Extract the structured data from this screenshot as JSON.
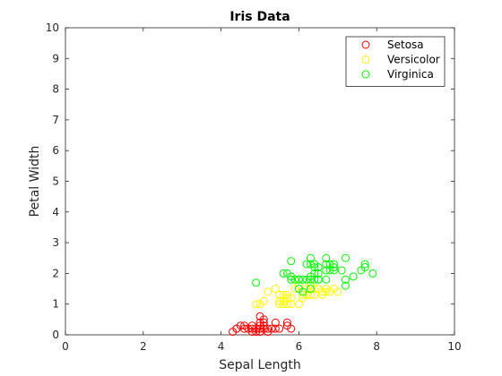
{
  "chart_data": {
    "type": "scatter",
    "title": "Iris Data",
    "xlabel": "Sepal Length",
    "ylabel": "Petal Width",
    "xlim": [
      0,
      10
    ],
    "ylim": [
      0,
      10
    ],
    "xticks": [
      "0",
      "2",
      "4",
      "6",
      "8",
      "10"
    ],
    "yticks": [
      "0",
      "1",
      "2",
      "3",
      "4",
      "5",
      "6",
      "7",
      "8",
      "9",
      "10"
    ],
    "grid": false,
    "legend_position": "top-right",
    "marker": "open-circle",
    "series": [
      {
        "name": "Setosa",
        "color": "#ff0000",
        "points": [
          [
            4.3,
            0.1
          ],
          [
            4.4,
            0.2
          ],
          [
            4.5,
            0.3
          ],
          [
            4.6,
            0.2
          ],
          [
            4.6,
            0.3
          ],
          [
            4.7,
            0.2
          ],
          [
            4.8,
            0.2
          ],
          [
            4.8,
            0.1
          ],
          [
            4.8,
            0.3
          ],
          [
            4.9,
            0.1
          ],
          [
            4.9,
            0.2
          ],
          [
            5.0,
            0.2
          ],
          [
            5.0,
            0.4
          ],
          [
            5.0,
            0.6
          ],
          [
            5.0,
            0.3
          ],
          [
            5.1,
            0.2
          ],
          [
            5.1,
            0.4
          ],
          [
            5.1,
            0.5
          ],
          [
            5.1,
            0.3
          ],
          [
            5.2,
            0.2
          ],
          [
            5.2,
            0.1
          ],
          [
            5.3,
            0.2
          ],
          [
            5.4,
            0.2
          ],
          [
            5.4,
            0.4
          ],
          [
            5.5,
            0.2
          ],
          [
            5.7,
            0.3
          ],
          [
            5.7,
            0.4
          ],
          [
            5.8,
            0.2
          ],
          [
            4.4,
            0.2
          ],
          [
            5.0,
            0.1
          ]
        ]
      },
      {
        "name": "Versicolor",
        "color": "#ffff00",
        "points": [
          [
            4.9,
            1.0
          ],
          [
            5.0,
            1.0
          ],
          [
            5.1,
            1.1
          ],
          [
            5.2,
            1.4
          ],
          [
            5.5,
            1.0
          ],
          [
            5.5,
            1.1
          ],
          [
            5.5,
            1.3
          ],
          [
            5.6,
            1.0
          ],
          [
            5.6,
            1.1
          ],
          [
            5.6,
            1.3
          ],
          [
            5.7,
            1.0
          ],
          [
            5.7,
            1.2
          ],
          [
            5.7,
            1.3
          ],
          [
            5.8,
            1.0
          ],
          [
            5.8,
            1.2
          ],
          [
            5.9,
            1.5
          ],
          [
            6.0,
            1.0
          ],
          [
            6.0,
            1.6
          ],
          [
            6.1,
            1.2
          ],
          [
            6.1,
            1.4
          ],
          [
            6.2,
            1.3
          ],
          [
            6.2,
            1.5
          ],
          [
            6.3,
            1.3
          ],
          [
            6.3,
            1.5
          ],
          [
            6.4,
            1.3
          ],
          [
            6.4,
            1.5
          ],
          [
            6.5,
            1.5
          ],
          [
            6.6,
            1.3
          ],
          [
            6.6,
            1.4
          ],
          [
            6.7,
            1.4
          ],
          [
            6.7,
            1.5
          ],
          [
            6.8,
            1.4
          ],
          [
            6.9,
            1.5
          ],
          [
            7.0,
            1.4
          ],
          [
            5.4,
            1.5
          ],
          [
            5.9,
            1.8
          ],
          [
            6.1,
            1.3
          ],
          [
            6.3,
            1.6
          ]
        ]
      },
      {
        "name": "Virginica",
        "color": "#00ff00",
        "points": [
          [
            4.9,
            1.7
          ],
          [
            5.6,
            2.0
          ],
          [
            5.7,
            2.0
          ],
          [
            5.8,
            1.9
          ],
          [
            5.8,
            2.4
          ],
          [
            5.9,
            1.8
          ],
          [
            6.0,
            1.8
          ],
          [
            6.0,
            1.5
          ],
          [
            6.1,
            1.4
          ],
          [
            6.1,
            1.8
          ],
          [
            6.2,
            1.8
          ],
          [
            6.3,
            1.8
          ],
          [
            6.3,
            2.3
          ],
          [
            6.3,
            2.5
          ],
          [
            6.4,
            1.8
          ],
          [
            6.4,
            2.0
          ],
          [
            6.4,
            2.3
          ],
          [
            6.5,
            1.8
          ],
          [
            6.5,
            2.0
          ],
          [
            6.5,
            2.2
          ],
          [
            6.7,
            1.8
          ],
          [
            6.7,
            2.3
          ],
          [
            6.7,
            2.5
          ],
          [
            6.8,
            2.1
          ],
          [
            6.8,
            2.3
          ],
          [
            6.9,
            2.1
          ],
          [
            6.9,
            2.3
          ],
          [
            7.1,
            2.1
          ],
          [
            7.2,
            1.6
          ],
          [
            7.2,
            1.8
          ],
          [
            7.2,
            2.5
          ],
          [
            7.4,
            1.9
          ],
          [
            7.6,
            2.1
          ],
          [
            7.7,
            2.2
          ],
          [
            7.7,
            2.3
          ],
          [
            7.9,
            2.0
          ],
          [
            6.3,
            1.9
          ],
          [
            5.8,
            1.8
          ],
          [
            6.7,
            2.1
          ],
          [
            6.4,
            2.2
          ],
          [
            6.2,
            2.3
          ],
          [
            6.9,
            2.2
          ],
          [
            6.0,
            1.8
          ],
          [
            6.5,
            1.8
          ],
          [
            6.3,
            1.5
          ]
        ]
      }
    ]
  }
}
